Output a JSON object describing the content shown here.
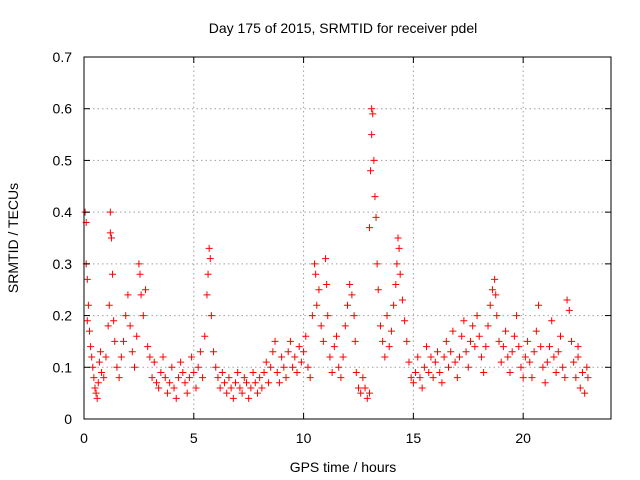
{
  "chart_data": {
    "type": "scatter",
    "title": "Day 175 of 2015, SRMTID for receiver pdel",
    "xlabel": "GPS time / hours",
    "ylabel": "SRMTID / TECUs",
    "xlim": [
      0,
      24
    ],
    "ylim": [
      0,
      0.7
    ],
    "x_ticks": [
      "0",
      "5",
      "10",
      "15",
      "20"
    ],
    "x_tick_values": [
      0,
      5,
      10,
      15,
      20
    ],
    "y_ticks": [
      "0",
      "0.1",
      "0.2",
      "0.3",
      "0.4",
      "0.5",
      "0.6",
      "0.7"
    ],
    "y_tick_values": [
      0,
      0.1,
      0.2,
      0.3,
      0.4,
      0.5,
      0.6,
      0.7
    ],
    "grid": true,
    "marker": "+",
    "series": [
      {
        "name": "SRMTID",
        "color": "#ff0000",
        "points": [
          [
            0.05,
            0.4
          ],
          [
            0.1,
            0.38
          ],
          [
            0.1,
            0.3
          ],
          [
            0.15,
            0.27
          ],
          [
            0.2,
            0.22
          ],
          [
            0.15,
            0.19
          ],
          [
            0.25,
            0.17
          ],
          [
            0.3,
            0.14
          ],
          [
            0.35,
            0.12
          ],
          [
            0.4,
            0.1
          ],
          [
            0.45,
            0.08
          ],
          [
            0.5,
            0.06
          ],
          [
            0.55,
            0.05
          ],
          [
            0.6,
            0.04
          ],
          [
            0.65,
            0.07
          ],
          [
            0.7,
            0.11
          ],
          [
            0.75,
            0.13
          ],
          [
            0.8,
            0.09
          ],
          [
            0.9,
            0.08
          ],
          [
            1.0,
            0.12
          ],
          [
            1.1,
            0.18
          ],
          [
            1.15,
            0.22
          ],
          [
            1.2,
            0.4
          ],
          [
            1.2,
            0.36
          ],
          [
            1.25,
            0.35
          ],
          [
            1.3,
            0.28
          ],
          [
            1.35,
            0.19
          ],
          [
            1.4,
            0.15
          ],
          [
            1.5,
            0.1
          ],
          [
            1.6,
            0.08
          ],
          [
            1.7,
            0.12
          ],
          [
            1.8,
            0.15
          ],
          [
            1.9,
            0.2
          ],
          [
            2.0,
            0.24
          ],
          [
            2.1,
            0.18
          ],
          [
            2.2,
            0.13
          ],
          [
            2.3,
            0.1
          ],
          [
            2.4,
            0.16
          ],
          [
            2.5,
            0.3
          ],
          [
            2.55,
            0.28
          ],
          [
            2.6,
            0.24
          ],
          [
            2.7,
            0.2
          ],
          [
            2.8,
            0.25
          ],
          [
            2.9,
            0.14
          ],
          [
            3.0,
            0.12
          ],
          [
            3.1,
            0.08
          ],
          [
            3.2,
            0.11
          ],
          [
            3.3,
            0.07
          ],
          [
            3.4,
            0.06
          ],
          [
            3.5,
            0.09
          ],
          [
            3.6,
            0.12
          ],
          [
            3.7,
            0.08
          ],
          [
            3.8,
            0.05
          ],
          [
            3.9,
            0.07
          ],
          [
            4.0,
            0.1
          ],
          [
            4.1,
            0.06
          ],
          [
            4.2,
            0.04
          ],
          [
            4.3,
            0.08
          ],
          [
            4.4,
            0.11
          ],
          [
            4.5,
            0.09
          ],
          [
            4.6,
            0.07
          ],
          [
            4.7,
            0.05
          ],
          [
            4.8,
            0.08
          ],
          [
            4.9,
            0.12
          ],
          [
            5.0,
            0.09
          ],
          [
            5.1,
            0.06
          ],
          [
            5.2,
            0.1
          ],
          [
            5.3,
            0.13
          ],
          [
            5.4,
            0.08
          ],
          [
            5.5,
            0.16
          ],
          [
            5.6,
            0.24
          ],
          [
            5.65,
            0.28
          ],
          [
            5.7,
            0.33
          ],
          [
            5.75,
            0.31
          ],
          [
            5.8,
            0.2
          ],
          [
            5.9,
            0.13
          ],
          [
            6.0,
            0.1
          ],
          [
            6.1,
            0.08
          ],
          [
            6.2,
            0.06
          ],
          [
            6.3,
            0.09
          ],
          [
            6.4,
            0.07
          ],
          [
            6.5,
            0.05
          ],
          [
            6.6,
            0.08
          ],
          [
            6.7,
            0.06
          ],
          [
            6.8,
            0.04
          ],
          [
            6.9,
            0.07
          ],
          [
            7.0,
            0.09
          ],
          [
            7.1,
            0.06
          ],
          [
            7.2,
            0.05
          ],
          [
            7.3,
            0.08
          ],
          [
            7.4,
            0.07
          ],
          [
            7.5,
            0.04
          ],
          [
            7.6,
            0.06
          ],
          [
            7.7,
            0.09
          ],
          [
            7.8,
            0.07
          ],
          [
            7.9,
            0.05
          ],
          [
            8.0,
            0.08
          ],
          [
            8.1,
            0.06
          ],
          [
            8.2,
            0.09
          ],
          [
            8.3,
            0.11
          ],
          [
            8.4,
            0.07
          ],
          [
            8.5,
            0.1
          ],
          [
            8.6,
            0.13
          ],
          [
            8.7,
            0.15
          ],
          [
            8.8,
            0.09
          ],
          [
            8.9,
            0.07
          ],
          [
            9.0,
            0.12
          ],
          [
            9.1,
            0.1
          ],
          [
            9.2,
            0.08
          ],
          [
            9.3,
            0.13
          ],
          [
            9.4,
            0.15
          ],
          [
            9.5,
            0.1
          ],
          [
            9.6,
            0.12
          ],
          [
            9.7,
            0.09
          ],
          [
            9.8,
            0.14
          ],
          [
            9.9,
            0.11
          ],
          [
            10.0,
            0.13
          ],
          [
            10.1,
            0.16
          ],
          [
            10.2,
            0.1
          ],
          [
            10.3,
            0.08
          ],
          [
            10.4,
            0.2
          ],
          [
            10.5,
            0.3
          ],
          [
            10.55,
            0.28
          ],
          [
            10.6,
            0.22
          ],
          [
            10.7,
            0.25
          ],
          [
            10.8,
            0.18
          ],
          [
            10.9,
            0.15
          ],
          [
            11.0,
            0.31
          ],
          [
            11.05,
            0.26
          ],
          [
            11.1,
            0.2
          ],
          [
            11.2,
            0.12
          ],
          [
            11.3,
            0.09
          ],
          [
            11.4,
            0.14
          ],
          [
            11.5,
            0.16
          ],
          [
            11.6,
            0.1
          ],
          [
            11.7,
            0.08
          ],
          [
            11.8,
            0.12
          ],
          [
            11.9,
            0.18
          ],
          [
            12.0,
            0.22
          ],
          [
            12.1,
            0.26
          ],
          [
            12.2,
            0.24
          ],
          [
            12.3,
            0.2
          ],
          [
            12.35,
            0.15
          ],
          [
            12.4,
            0.09
          ],
          [
            12.5,
            0.06
          ],
          [
            12.6,
            0.05
          ],
          [
            12.7,
            0.08
          ],
          [
            12.8,
            0.06
          ],
          [
            12.9,
            0.04
          ],
          [
            13.0,
            0.05
          ],
          [
            13.0,
            0.37
          ],
          [
            13.05,
            0.48
          ],
          [
            13.1,
            0.55
          ],
          [
            13.1,
            0.6
          ],
          [
            13.15,
            0.59
          ],
          [
            13.2,
            0.5
          ],
          [
            13.25,
            0.43
          ],
          [
            13.3,
            0.39
          ],
          [
            13.35,
            0.3
          ],
          [
            13.4,
            0.25
          ],
          [
            13.5,
            0.18
          ],
          [
            13.6,
            0.15
          ],
          [
            13.7,
            0.12
          ],
          [
            13.8,
            0.2
          ],
          [
            13.9,
            0.14
          ],
          [
            14.0,
            0.17
          ],
          [
            14.1,
            0.22
          ],
          [
            14.2,
            0.26
          ],
          [
            14.25,
            0.3
          ],
          [
            14.3,
            0.35
          ],
          [
            14.35,
            0.33
          ],
          [
            14.4,
            0.28
          ],
          [
            14.5,
            0.23
          ],
          [
            14.6,
            0.19
          ],
          [
            14.7,
            0.15
          ],
          [
            14.8,
            0.11
          ],
          [
            14.9,
            0.08
          ],
          [
            15.0,
            0.07
          ],
          [
            15.1,
            0.09
          ],
          [
            15.2,
            0.12
          ],
          [
            15.3,
            0.08
          ],
          [
            15.4,
            0.06
          ],
          [
            15.5,
            0.1
          ],
          [
            15.6,
            0.14
          ],
          [
            15.7,
            0.09
          ],
          [
            15.8,
            0.12
          ],
          [
            15.9,
            0.08
          ],
          [
            16.0,
            0.11
          ],
          [
            16.1,
            0.13
          ],
          [
            16.2,
            0.09
          ],
          [
            16.3,
            0.07
          ],
          [
            16.4,
            0.12
          ],
          [
            16.5,
            0.15
          ],
          [
            16.6,
            0.1
          ],
          [
            16.7,
            0.13
          ],
          [
            16.8,
            0.17
          ],
          [
            16.9,
            0.11
          ],
          [
            17.0,
            0.08
          ],
          [
            17.1,
            0.12
          ],
          [
            17.2,
            0.16
          ],
          [
            17.3,
            0.19
          ],
          [
            17.4,
            0.13
          ],
          [
            17.5,
            0.1
          ],
          [
            17.6,
            0.15
          ],
          [
            17.7,
            0.18
          ],
          [
            17.8,
            0.14
          ],
          [
            17.9,
            0.2
          ],
          [
            18.0,
            0.16
          ],
          [
            18.1,
            0.12
          ],
          [
            18.2,
            0.09
          ],
          [
            18.3,
            0.14
          ],
          [
            18.4,
            0.18
          ],
          [
            18.5,
            0.22
          ],
          [
            18.6,
            0.25
          ],
          [
            18.7,
            0.27
          ],
          [
            18.75,
            0.24
          ],
          [
            18.8,
            0.2
          ],
          [
            18.9,
            0.15
          ],
          [
            19.0,
            0.11
          ],
          [
            19.1,
            0.14
          ],
          [
            19.2,
            0.17
          ],
          [
            19.3,
            0.12
          ],
          [
            19.4,
            0.09
          ],
          [
            19.5,
            0.13
          ],
          [
            19.6,
            0.16
          ],
          [
            19.7,
            0.2
          ],
          [
            19.8,
            0.14
          ],
          [
            19.9,
            0.1
          ],
          [
            20.0,
            0.08
          ],
          [
            20.1,
            0.12
          ],
          [
            20.2,
            0.15
          ],
          [
            20.3,
            0.11
          ],
          [
            20.4,
            0.08
          ],
          [
            20.5,
            0.13
          ],
          [
            20.6,
            0.17
          ],
          [
            20.7,
            0.22
          ],
          [
            20.8,
            0.14
          ],
          [
            20.9,
            0.1
          ],
          [
            21.0,
            0.07
          ],
          [
            21.1,
            0.11
          ],
          [
            21.2,
            0.14
          ],
          [
            21.3,
            0.19
          ],
          [
            21.4,
            0.12
          ],
          [
            21.5,
            0.09
          ],
          [
            21.6,
            0.13
          ],
          [
            21.7,
            0.16
          ],
          [
            21.8,
            0.1
          ],
          [
            21.9,
            0.08
          ],
          [
            22.0,
            0.23
          ],
          [
            22.1,
            0.21
          ],
          [
            22.2,
            0.15
          ],
          [
            22.3,
            0.11
          ],
          [
            22.4,
            0.08
          ],
          [
            22.5,
            0.12
          ],
          [
            22.6,
            0.06
          ],
          [
            22.7,
            0.09
          ],
          [
            22.8,
            0.05
          ],
          [
            22.9,
            0.1
          ],
          [
            22.95,
            0.08
          ],
          [
            22.5,
            0.14
          ]
        ]
      }
    ]
  }
}
